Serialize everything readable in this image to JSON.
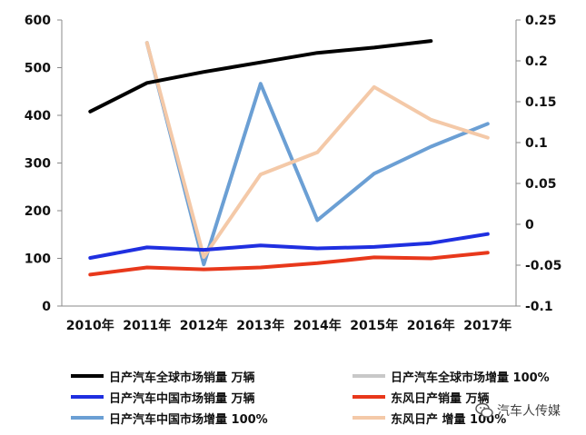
{
  "chart_data": {
    "type": "line",
    "categories": [
      "2010年",
      "2011年",
      "2012年",
      "2013年",
      "2014年",
      "2015年",
      "2016年",
      "2017年"
    ],
    "y_left": {
      "range": [
        0,
        600
      ],
      "ticks": [
        "0",
        "100",
        "200",
        "300",
        "400",
        "500",
        "600"
      ]
    },
    "y_right": {
      "range": [
        -0.1,
        0.25
      ],
      "ticks": [
        "-0.1",
        "-0.05",
        "0",
        "0.05",
        "0.1",
        "0.15",
        "0.2",
        "0.25"
      ]
    },
    "grid": false,
    "legend_placement": "bottom",
    "series": [
      {
        "name": "日产汽车全球市场销量  万辆",
        "axis": "left",
        "color": "#000000",
        "values": [
          408,
          468,
          491,
          511,
          531,
          542,
          556,
          null
        ]
      },
      {
        "name": "日产汽车全球市场增量  100%",
        "axis": "right",
        "color": "#c8c8c8",
        "values": [
          null,
          null,
          null,
          null,
          null,
          null,
          null,
          null
        ]
      },
      {
        "name": "日产汽车中国市场销量  万辆",
        "axis": "left",
        "color": "#1f2fe0",
        "values": [
          101,
          123,
          118,
          127,
          121,
          124,
          132,
          151
        ]
      },
      {
        "name": "东风日产销量  万辆",
        "axis": "left",
        "color": "#e8381b",
        "values": [
          66,
          81,
          77,
          81,
          90,
          102,
          100,
          112
        ]
      },
      {
        "name": "日产汽车中国市场增量  100%",
        "axis": "right",
        "color": "#6b9fd4",
        "values": [
          null,
          0.222,
          -0.049,
          0.172,
          0.005,
          0.062,
          0.095,
          0.123
        ]
      },
      {
        "name": "东风日产  增量  100%",
        "axis": "right",
        "color": "#f4c9a8",
        "values": [
          null,
          0.222,
          -0.04,
          0.061,
          0.088,
          0.168,
          0.128,
          0.106
        ]
      }
    ]
  },
  "watermark": {
    "text": "汽车人传媒",
    "icon": "wechat-icon"
  }
}
